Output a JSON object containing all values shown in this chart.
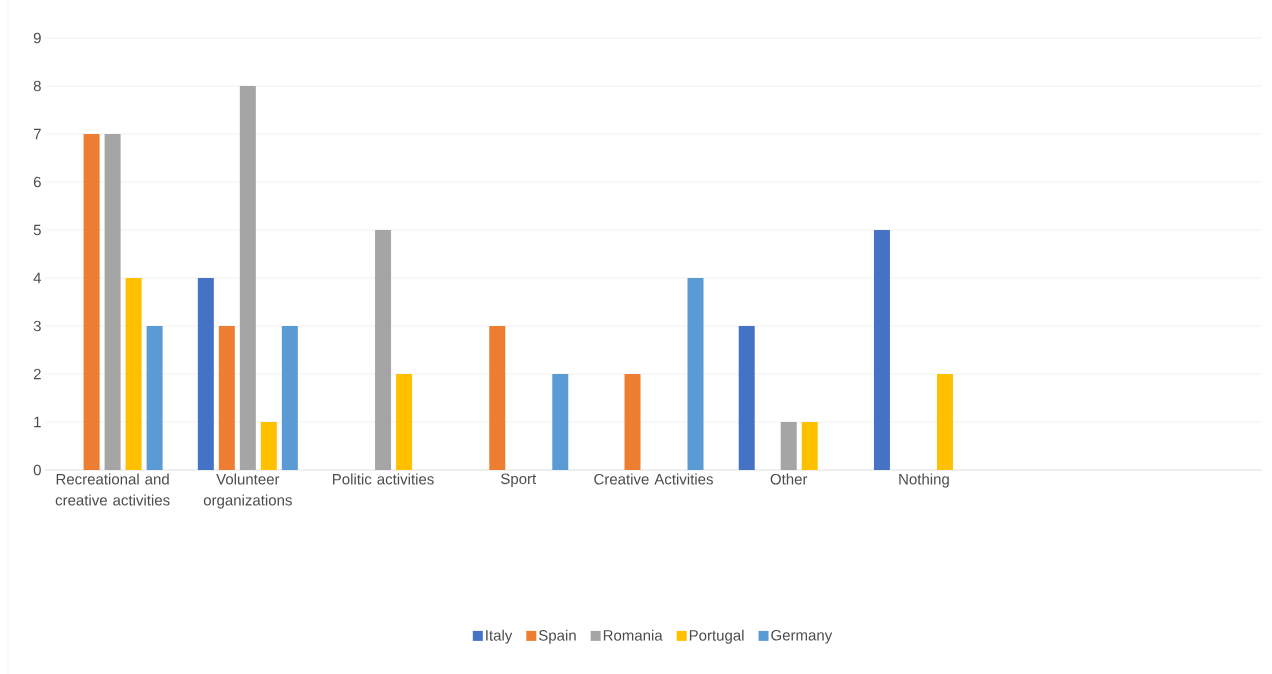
{
  "chart_data": {
    "type": "bar",
    "categories": [
      "Recreational and creative activities",
      "Volunteer organizations",
      "Politic activities",
      "Sport",
      "Creative Activities",
      "Other",
      "Nothing",
      null,
      null
    ],
    "series": [
      {
        "name": "Italy",
        "color": "#4472c4",
        "values": [
          null,
          4,
          null,
          null,
          null,
          3,
          5,
          null,
          null
        ]
      },
      {
        "name": "Spain",
        "color": "#ed7d31",
        "values": [
          7,
          3,
          null,
          3,
          2,
          null,
          null,
          null,
          null
        ]
      },
      {
        "name": "Romania",
        "color": "#a5a5a5",
        "values": [
          7,
          8,
          5,
          null,
          null,
          1,
          null,
          null,
          null
        ]
      },
      {
        "name": "Portugal",
        "color": "#ffc000",
        "values": [
          4,
          1,
          2,
          null,
          null,
          1,
          2,
          null,
          null
        ]
      },
      {
        "name": "Germany",
        "color": "#5b9bd5",
        "values": [
          3,
          3,
          null,
          2,
          4,
          null,
          null,
          null,
          null
        ]
      }
    ],
    "ylim": [
      0,
      9
    ],
    "yticks": [
      0,
      1,
      2,
      3,
      4,
      5,
      6,
      7,
      8,
      9
    ],
    "grid": "y",
    "legend": "bottom"
  }
}
